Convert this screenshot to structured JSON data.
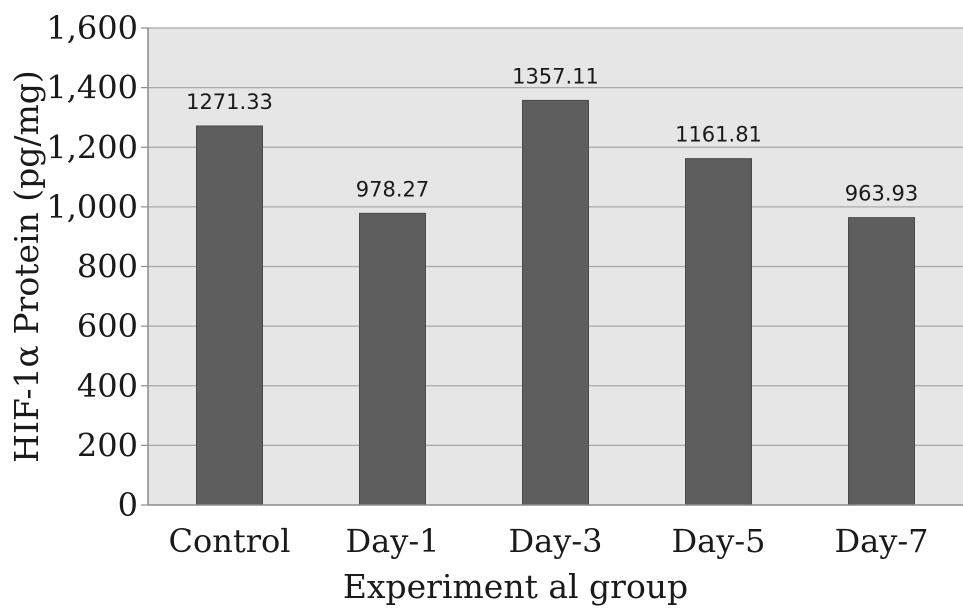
{
  "chart_data": {
    "type": "bar",
    "categories": [
      "Control",
      "Day-1",
      "Day-3",
      "Day-5",
      "Day-7"
    ],
    "values": [
      1271.33,
      978.27,
      1357.11,
      1161.81,
      963.93
    ],
    "data_labels": [
      "1271.33",
      "978.27",
      "1357.11",
      "1161.81",
      "963.93"
    ],
    "title": "",
    "xlabel": "Experiment al group",
    "ylabel": "HIF-1α Protein (pg/mg)",
    "ylim": [
      0,
      1600
    ],
    "yticks": [
      0,
      200,
      400,
      600,
      800,
      1000,
      1200,
      1400,
      1600
    ],
    "ytick_labels": [
      "0",
      "200",
      "400",
      "600",
      "800",
      "1,000",
      "1,200",
      "1,400",
      "1,600"
    ],
    "grid": true,
    "legend": "none",
    "colors": {
      "bar": "#5e5e5e",
      "bar_stroke": "#4a4a4a",
      "plot_background": "#e6e6e6",
      "gridline": "#a8a8a8",
      "axis": "#8c8c8c",
      "text": "#1a1a1a"
    }
  }
}
